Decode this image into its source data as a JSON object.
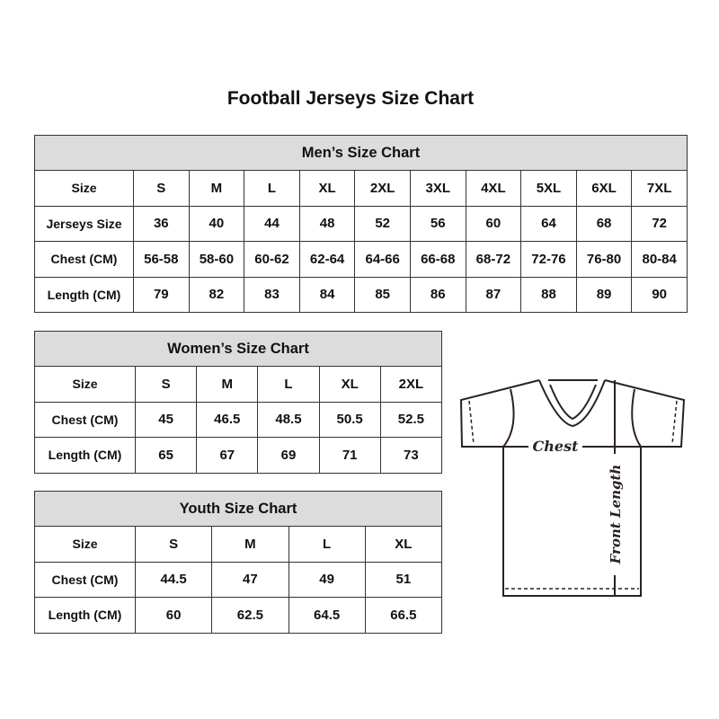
{
  "title": "Football Jerseys Size Chart",
  "tables": [
    {
      "id": "men",
      "title": "Men’s Size Chart",
      "rows": [
        [
          "Size",
          "S",
          "M",
          "L",
          "XL",
          "2XL",
          "3XL",
          "4XL",
          "5XL",
          "6XL",
          "7XL"
        ],
        [
          "Jerseys Size",
          "36",
          "40",
          "44",
          "48",
          "52",
          "56",
          "60",
          "64",
          "68",
          "72"
        ],
        [
          "Chest (CM)",
          "56-58",
          "58-60",
          "60-62",
          "62-64",
          "64-66",
          "66-68",
          "68-72",
          "72-76",
          "76-80",
          "80-84"
        ],
        [
          "Length (CM)",
          "79",
          "82",
          "83",
          "84",
          "85",
          "86",
          "87",
          "88",
          "89",
          "90"
        ]
      ]
    },
    {
      "id": "women",
      "title": "Women’s Size Chart",
      "rows": [
        [
          "Size",
          "S",
          "M",
          "L",
          "XL",
          "2XL"
        ],
        [
          "Chest (CM)",
          "45",
          "46.5",
          "48.5",
          "50.5",
          "52.5"
        ],
        [
          "Length (CM)",
          "65",
          "67",
          "69",
          "71",
          "73"
        ]
      ]
    },
    {
      "id": "youth",
      "title": "Youth Size Chart",
      "rows": [
        [
          "Size",
          "S",
          "M",
          "L",
          "XL"
        ],
        [
          "Chest (CM)",
          "44.5",
          "47",
          "49",
          "51"
        ],
        [
          "Length (CM)",
          "60",
          "62.5",
          "64.5",
          "66.5"
        ]
      ]
    }
  ],
  "diagram": {
    "chest_label": "Chest",
    "length_label": "Front Length"
  }
}
